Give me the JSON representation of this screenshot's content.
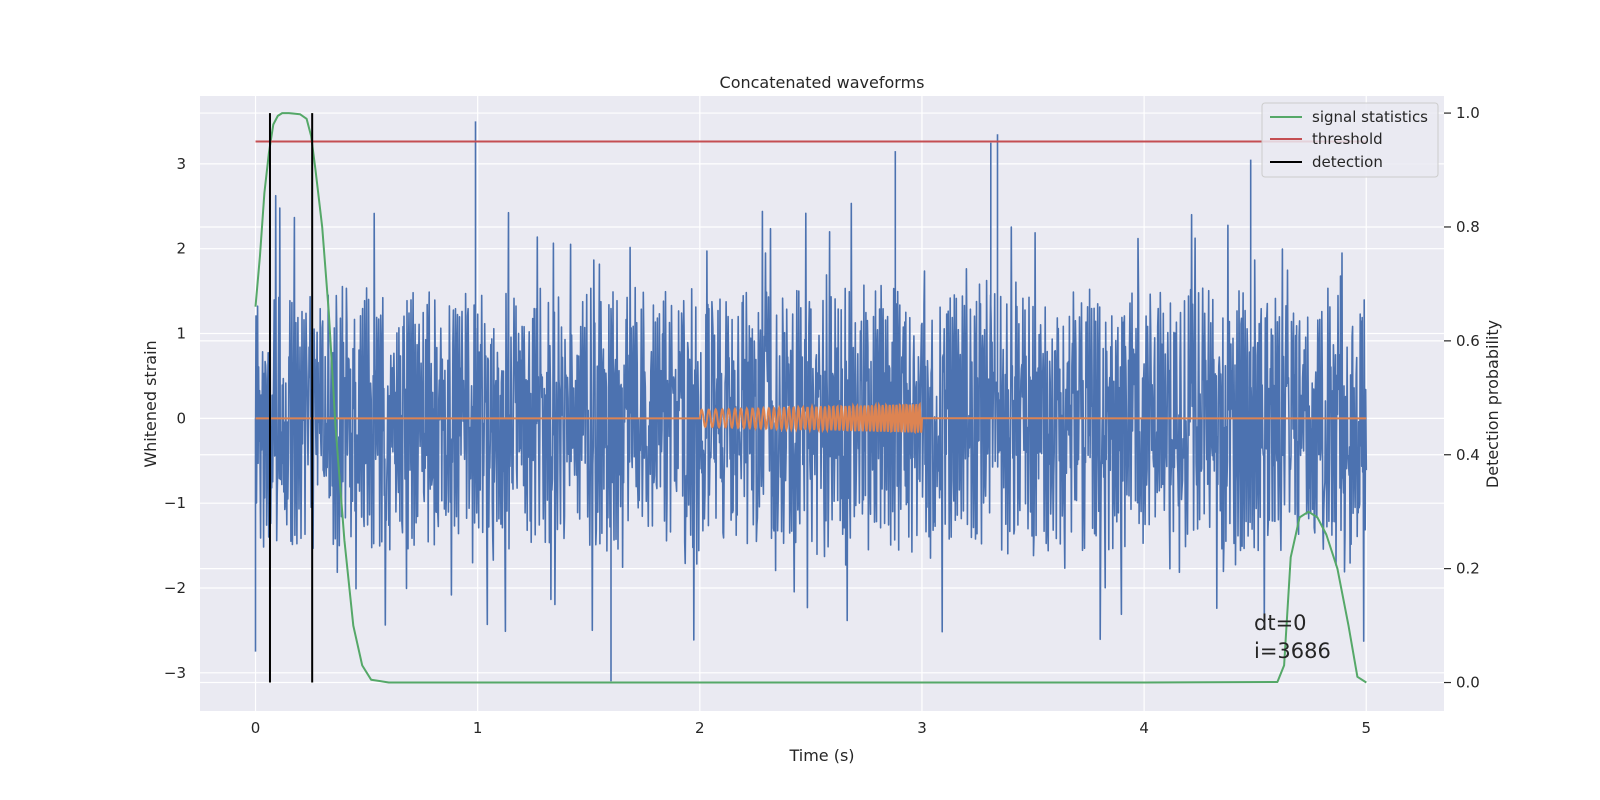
{
  "chart_data": {
    "type": "line",
    "title": "Concatenated waveforms",
    "xlabel": "Time (s)",
    "ylabel_left": "Whitened strain",
    "ylabel_right": "Detection probability",
    "xlim": [
      -0.25,
      5.35
    ],
    "ylim_left": [
      -3.45,
      3.8
    ],
    "ylim_right": [
      -0.05,
      1.03
    ],
    "grid": true,
    "xticks": [
      0,
      1,
      2,
      3,
      4,
      5
    ],
    "xtick_labels": [
      "0",
      "1",
      "2",
      "3",
      "4",
      "5"
    ],
    "yticks_left": [
      -3,
      -2,
      -1,
      0,
      1,
      2,
      3
    ],
    "ytick_labels_left": [
      "−3",
      "−2",
      "−1",
      "0",
      "1",
      "2",
      "3"
    ],
    "yticks_right": [
      0.0,
      0.2,
      0.4,
      0.6,
      0.8,
      1.0
    ],
    "ytick_labels_right": [
      "0.0",
      "0.2",
      "0.4",
      "0.6",
      "0.8",
      "1.0"
    ],
    "series": [
      {
        "role": "strain",
        "axis": "left",
        "color": "#4c72b0",
        "x_range": [
          0,
          5
        ],
        "typical_envelope": [
          -1.3,
          1.3
        ],
        "notable_peaks": [
          {
            "x": 0.99,
            "y": 3.5
          },
          {
            "x": 3.34,
            "y": 3.35
          },
          {
            "x": 3.31,
            "y": 3.25
          },
          {
            "x": 2.88,
            "y": 3.15
          },
          {
            "x": 4.48,
            "y": 3.05
          },
          {
            "x": 1.6,
            "y": -3.1
          },
          {
            "x": 0.0,
            "y": -2.75
          }
        ]
      },
      {
        "role": "template",
        "axis": "left",
        "color": "#dd8452",
        "x_range": [
          0,
          5
        ],
        "chirp_start": 2.0,
        "chirp_end": 3.0,
        "amplitude_start": 0.1,
        "amplitude_end": 0.17
      },
      {
        "name": "signal statistics",
        "axis": "right",
        "color": "#55a868",
        "x": [
          0.0,
          0.02,
          0.04,
          0.06,
          0.08,
          0.1,
          0.12,
          0.15,
          0.2,
          0.23,
          0.25,
          0.27,
          0.3,
          0.33,
          0.36,
          0.4,
          0.44,
          0.48,
          0.52,
          0.6,
          1.0,
          2.0,
          3.0,
          4.0,
          4.6,
          4.63,
          4.66,
          4.7,
          4.74,
          4.78,
          4.82,
          4.87,
          4.92,
          4.96,
          5.0
        ],
        "y": [
          0.66,
          0.75,
          0.86,
          0.93,
          0.98,
          0.995,
          1.0,
          1.0,
          0.998,
          0.99,
          0.96,
          0.9,
          0.8,
          0.65,
          0.45,
          0.25,
          0.1,
          0.03,
          0.005,
          0.0,
          0.0,
          0.0,
          0.0,
          0.0,
          0.001,
          0.03,
          0.22,
          0.29,
          0.3,
          0.29,
          0.26,
          0.2,
          0.1,
          0.01,
          0.0
        ]
      },
      {
        "name": "threshold",
        "axis": "right",
        "color": "#c44e52",
        "x": [
          0,
          5
        ],
        "y": [
          0.95,
          0.95
        ]
      },
      {
        "name": "detection",
        "axis": "right",
        "color": "#000000",
        "x_positions": [
          0.065,
          0.255
        ],
        "y_range": [
          0.0,
          1.0
        ]
      }
    ],
    "legend": {
      "placement": "top-right",
      "entries": [
        {
          "label": "signal statistics",
          "color": "#55a868"
        },
        {
          "label": "threshold",
          "color": "#c44e52"
        },
        {
          "label": "detection",
          "color": "#000000"
        }
      ]
    },
    "annotation": {
      "lines": [
        "dt=0",
        "i=3686"
      ],
      "x": 4.5,
      "y_right": 0.09
    },
    "colors": {
      "plot_background": "#eaeaf2",
      "grid": "#ffffff"
    }
  }
}
